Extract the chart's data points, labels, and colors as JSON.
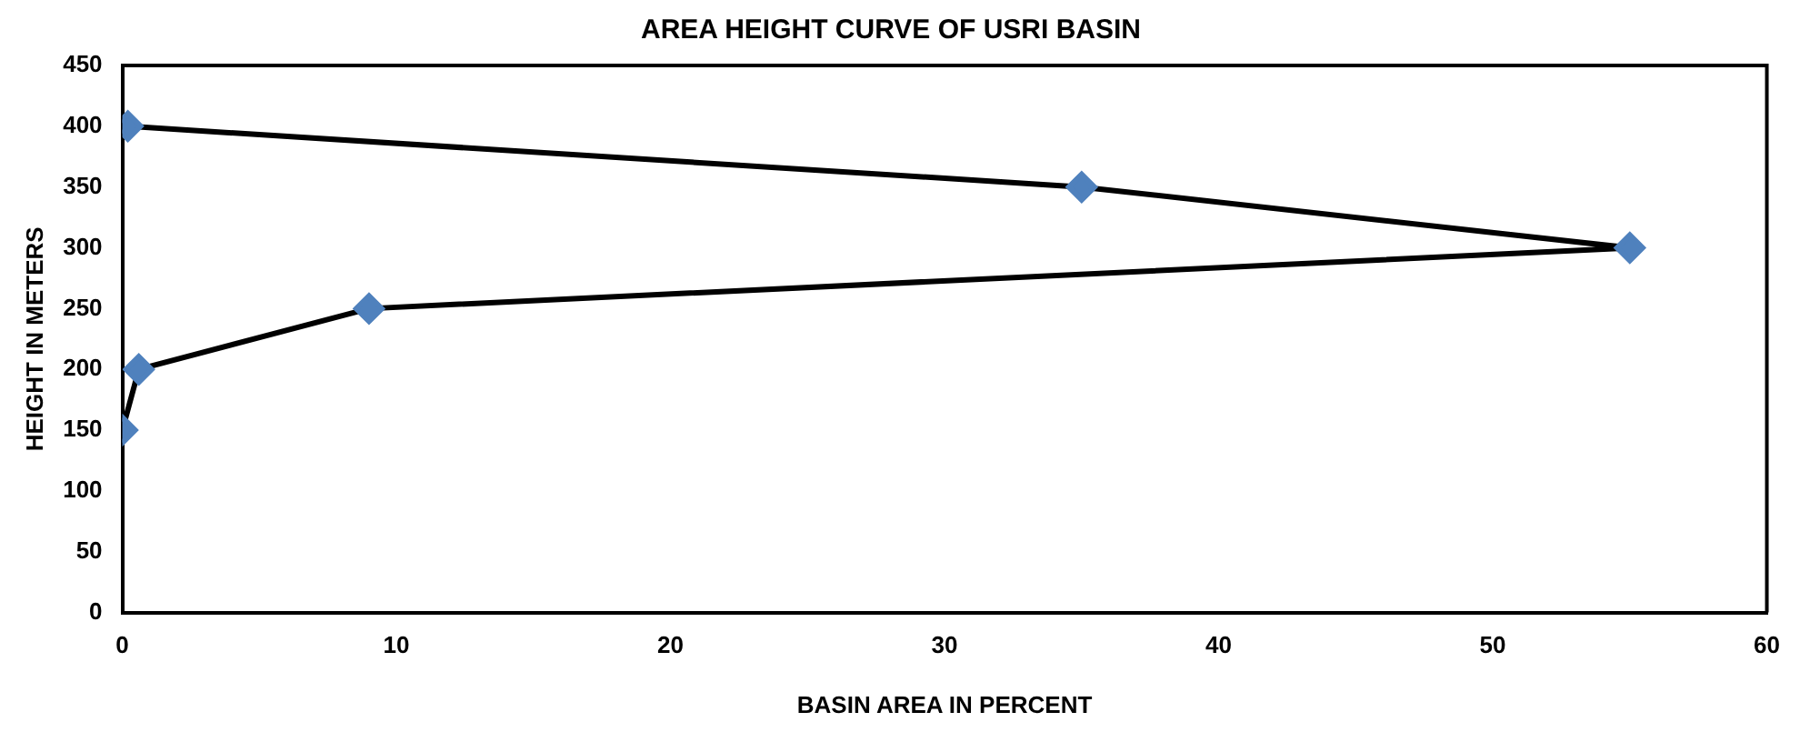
{
  "chart_data": {
    "type": "line",
    "title": "AREA HEIGHT CURVE OF USRI BASIN",
    "xlabel": "BASIN AREA IN PERCENT",
    "ylabel": "HEIGHT IN METERS",
    "series": [
      {
        "x": [
          0,
          0.6,
          9,
          55,
          35,
          0.2
        ],
        "values": [
          150,
          200,
          250,
          300,
          350,
          400
        ],
        "color": "#000000",
        "colors": [
          "#4f81bd",
          "#4f81bd",
          "#4f81bd",
          "#4f81bd",
          "#4f81bd",
          "#4f81bd"
        ]
      }
    ],
    "xlim": [
      0,
      60
    ],
    "xticks": [
      0,
      10,
      20,
      30,
      40,
      50,
      60
    ],
    "ylim": [
      0,
      450
    ],
    "yticks": [
      0,
      50,
      100,
      150,
      200,
      250,
      300,
      350,
      400,
      450
    ],
    "grid": false,
    "legend": false,
    "marker": "diamond",
    "line_style": "solid"
  }
}
